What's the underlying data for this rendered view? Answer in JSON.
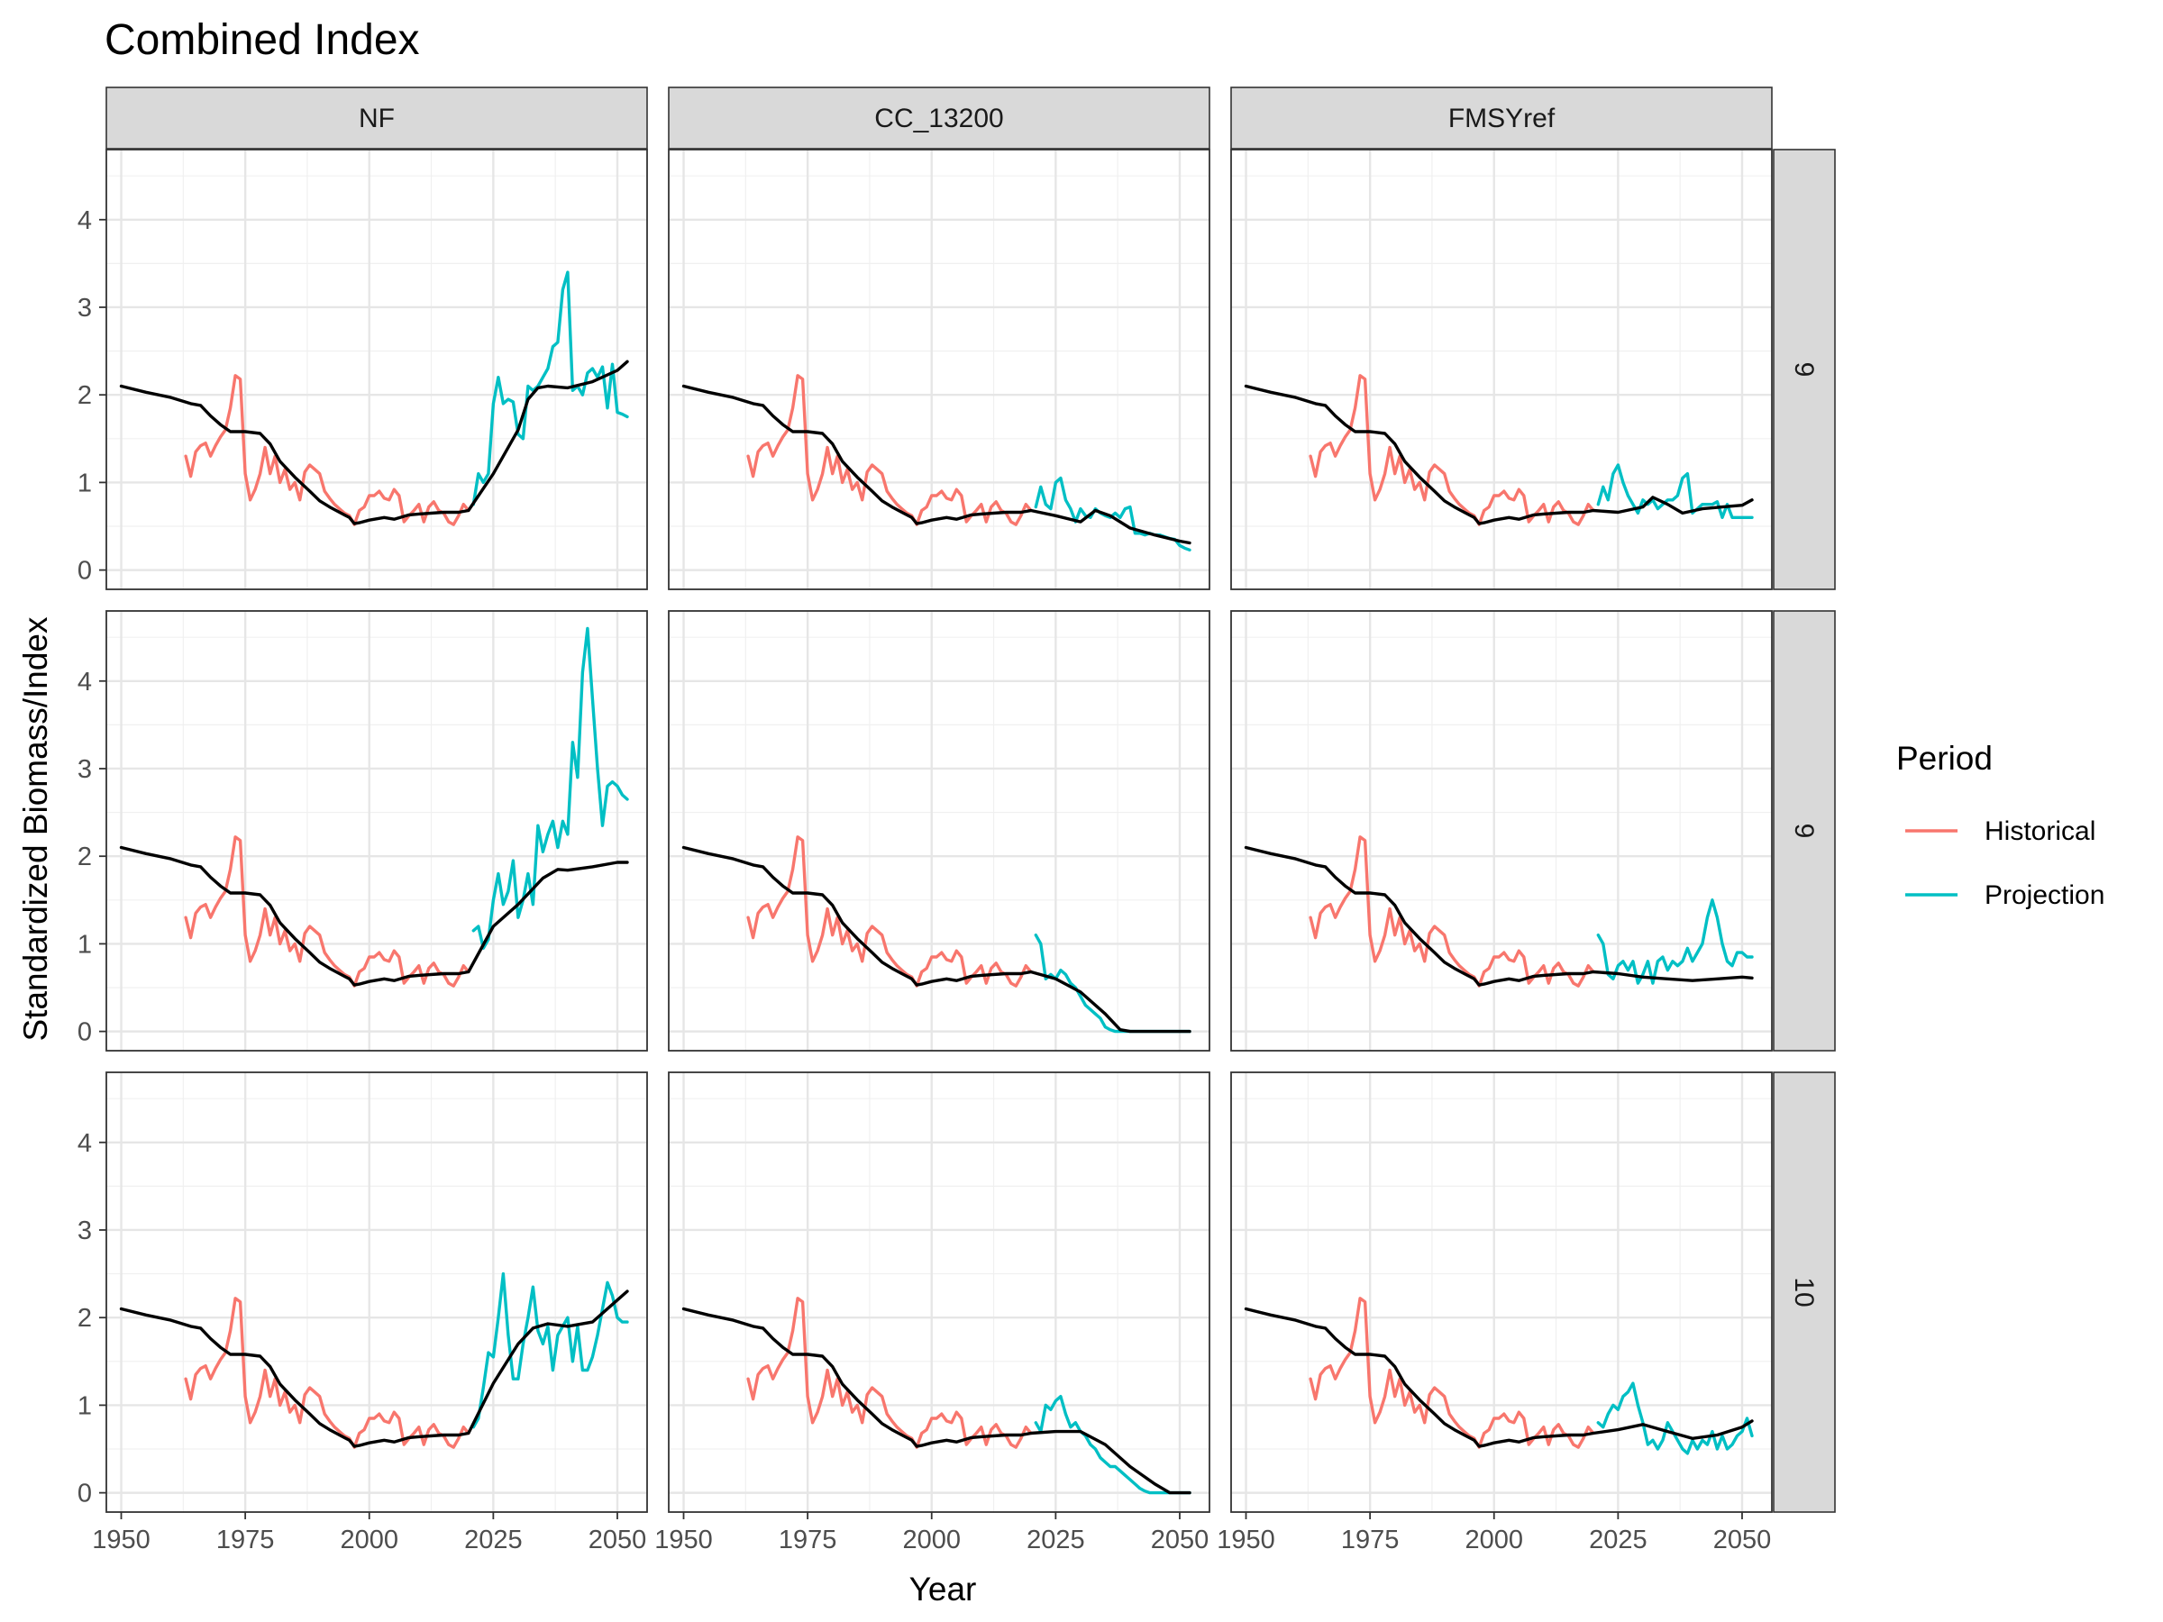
{
  "chart_data": {
    "type": "line",
    "title": "Combined Index",
    "xlabel": "Year",
    "ylabel": "Standardized Biomass/Index",
    "xlim": [
      1947,
      2056
    ],
    "ylim": [
      -0.22,
      4.8
    ],
    "x_ticks": [
      1950,
      1975,
      2000,
      2025,
      2050
    ],
    "y_ticks": [
      0,
      1,
      2,
      3,
      4
    ],
    "grid": true,
    "legend": {
      "title": "Period",
      "position": "right",
      "entries": [
        {
          "label": "Historical",
          "color": "#F8766D"
        },
        {
          "label": "Projection",
          "color": "#00BFC4"
        }
      ]
    },
    "col_labels": [
      "NF",
      "CC_13200",
      "FMSYref"
    ],
    "row_labels": [
      "9",
      "9",
      "10"
    ],
    "colors": {
      "Historical": "#F8766D",
      "Projection": "#00BFC4",
      "reference": "#000000"
    },
    "historical": {
      "x": [
        1963,
        1964,
        1965,
        1966,
        1967,
        1968,
        1969,
        1970,
        1971,
        1972,
        1973,
        1974,
        1975,
        1976,
        1977,
        1978,
        1979,
        1980,
        1981,
        1982,
        1983,
        1984,
        1985,
        1986,
        1987,
        1988,
        1989,
        1990,
        1991,
        1992,
        1993,
        1994,
        1995,
        1996,
        1997,
        1998,
        1999,
        2000,
        2001,
        2002,
        2003,
        2004,
        2005,
        2006,
        2007,
        2008,
        2009,
        2010,
        2011,
        2012,
        2013,
        2014,
        2015,
        2016,
        2017,
        2018,
        2019,
        2020
      ],
      "y": [
        1.3,
        1.07,
        1.35,
        1.42,
        1.45,
        1.3,
        1.42,
        1.52,
        1.6,
        1.85,
        2.22,
        2.18,
        1.1,
        0.8,
        0.92,
        1.1,
        1.4,
        1.1,
        1.3,
        1.0,
        1.15,
        0.92,
        1.0,
        0.8,
        1.12,
        1.2,
        1.15,
        1.1,
        0.9,
        0.82,
        0.75,
        0.7,
        0.65,
        0.62,
        0.52,
        0.68,
        0.72,
        0.85,
        0.85,
        0.9,
        0.82,
        0.8,
        0.92,
        0.85,
        0.55,
        0.62,
        0.68,
        0.75,
        0.55,
        0.72,
        0.78,
        0.68,
        0.65,
        0.55,
        0.52,
        0.62,
        0.75,
        0.68
      ]
    },
    "reference_hist": {
      "x": [
        1950,
        1955,
        1960,
        1964,
        1966,
        1968,
        1970,
        1972,
        1975,
        1978,
        1980,
        1982,
        1985,
        1988,
        1990,
        1992,
        1994,
        1996,
        1997,
        1998,
        2000,
        2003,
        2005,
        2008,
        2010,
        2015,
        2018,
        2020
      ],
      "y": [
        2.1,
        2.03,
        1.97,
        1.9,
        1.88,
        1.76,
        1.66,
        1.58,
        1.58,
        1.56,
        1.44,
        1.24,
        1.06,
        0.9,
        0.79,
        0.72,
        0.66,
        0.6,
        0.53,
        0.54,
        0.57,
        0.6,
        0.58,
        0.63,
        0.64,
        0.66,
        0.66,
        0.68
      ]
    },
    "panels": [
      {
        "col": "NF",
        "row": "9",
        "projection": {
          "x": [
            2021,
            2022,
            2023,
            2024,
            2025,
            2026,
            2027,
            2028,
            2029,
            2030,
            2031,
            2032,
            2033,
            2034,
            2035,
            2036,
            2037,
            2038,
            2039,
            2040,
            2041,
            2042,
            2043,
            2044,
            2045,
            2046,
            2047,
            2048,
            2049,
            2050,
            2051,
            2052
          ],
          "y": [
            0.75,
            1.1,
            1.0,
            1.1,
            1.9,
            2.2,
            1.9,
            1.95,
            1.92,
            1.55,
            1.5,
            2.1,
            2.05,
            2.1,
            2.2,
            2.3,
            2.55,
            2.6,
            3.2,
            3.4,
            2.05,
            2.1,
            2.0,
            2.25,
            2.3,
            2.2,
            2.32,
            1.85,
            2.35,
            1.8,
            1.78,
            1.75
          ]
        },
        "reference": {
          "x": [
            2020,
            2025,
            2030,
            2032,
            2034,
            2036,
            2040,
            2045,
            2050,
            2052
          ],
          "y": [
            0.7,
            1.1,
            1.6,
            1.95,
            2.08,
            2.1,
            2.08,
            2.15,
            2.28,
            2.38
          ]
        }
      },
      {
        "col": "CC_13200",
        "row": "9",
        "projection": {
          "x": [
            2021,
            2022,
            2023,
            2024,
            2025,
            2026,
            2027,
            2028,
            2029,
            2030,
            2031,
            2032,
            2033,
            2034,
            2035,
            2036,
            2037,
            2038,
            2039,
            2040,
            2041,
            2042,
            2043,
            2044,
            2045,
            2046,
            2047,
            2048,
            2049,
            2050,
            2051,
            2052
          ],
          "y": [
            0.72,
            0.95,
            0.75,
            0.7,
            1.0,
            1.05,
            0.8,
            0.7,
            0.55,
            0.7,
            0.62,
            0.6,
            0.7,
            0.65,
            0.62,
            0.6,
            0.65,
            0.6,
            0.7,
            0.72,
            0.42,
            0.42,
            0.4,
            0.42,
            0.4,
            0.4,
            0.38,
            0.36,
            0.35,
            0.28,
            0.25,
            0.23
          ]
        },
        "reference": {
          "x": [
            2020,
            2025,
            2030,
            2033,
            2036,
            2040,
            2045,
            2050,
            2052
          ],
          "y": [
            0.68,
            0.62,
            0.55,
            0.68,
            0.62,
            0.48,
            0.4,
            0.33,
            0.31
          ]
        }
      },
      {
        "col": "FMSYref",
        "row": "9",
        "projection": {
          "x": [
            2021,
            2022,
            2023,
            2024,
            2025,
            2026,
            2027,
            2028,
            2029,
            2030,
            2031,
            2032,
            2033,
            2034,
            2035,
            2036,
            2037,
            2038,
            2039,
            2040,
            2041,
            2042,
            2043,
            2044,
            2045,
            2046,
            2047,
            2048,
            2049,
            2050,
            2051,
            2052
          ],
          "y": [
            0.75,
            0.95,
            0.8,
            1.1,
            1.2,
            1.0,
            0.85,
            0.75,
            0.65,
            0.8,
            0.75,
            0.8,
            0.7,
            0.75,
            0.8,
            0.8,
            0.85,
            1.05,
            1.1,
            0.65,
            0.7,
            0.75,
            0.75,
            0.75,
            0.78,
            0.6,
            0.75,
            0.6,
            0.6,
            0.6,
            0.6,
            0.6
          ]
        },
        "reference": {
          "x": [
            2020,
            2025,
            2030,
            2032,
            2035,
            2038,
            2042,
            2046,
            2050,
            2052
          ],
          "y": [
            0.68,
            0.66,
            0.72,
            0.83,
            0.75,
            0.65,
            0.7,
            0.72,
            0.74,
            0.8
          ]
        }
      },
      {
        "col": "NF",
        "row": "9",
        "projection": {
          "x": [
            2021,
            2022,
            2023,
            2024,
            2025,
            2026,
            2027,
            2028,
            2029,
            2030,
            2031,
            2032,
            2033,
            2034,
            2035,
            2036,
            2037,
            2038,
            2039,
            2040,
            2041,
            2042,
            2043,
            2044,
            2045,
            2046,
            2047,
            2048,
            2049,
            2050,
            2051,
            2052
          ],
          "y": [
            1.15,
            1.2,
            0.95,
            1.05,
            1.5,
            1.8,
            1.45,
            1.6,
            1.95,
            1.3,
            1.5,
            1.8,
            1.45,
            2.35,
            2.05,
            2.25,
            2.4,
            2.1,
            2.4,
            2.25,
            3.3,
            2.9,
            4.1,
            4.6,
            3.8,
            3.0,
            2.35,
            2.8,
            2.85,
            2.8,
            2.7,
            2.65
          ]
        },
        "reference": {
          "x": [
            2020,
            2025,
            2030,
            2035,
            2038,
            2040,
            2045,
            2050,
            2052
          ],
          "y": [
            0.7,
            1.2,
            1.45,
            1.75,
            1.85,
            1.84,
            1.88,
            1.93,
            1.93
          ]
        }
      },
      {
        "col": "CC_13200",
        "row": "9",
        "projection": {
          "x": [
            2021,
            2022,
            2023,
            2024,
            2025,
            2026,
            2027,
            2028,
            2029,
            2030,
            2031,
            2032,
            2033,
            2034,
            2035,
            2036,
            2037,
            2038,
            2039,
            2040,
            2041,
            2042,
            2043,
            2044,
            2045,
            2046,
            2047,
            2048,
            2049,
            2050,
            2051,
            2052
          ],
          "y": [
            1.1,
            1.0,
            0.6,
            0.65,
            0.6,
            0.7,
            0.65,
            0.55,
            0.5,
            0.4,
            0.3,
            0.25,
            0.2,
            0.15,
            0.05,
            0.02,
            0,
            0,
            0,
            0,
            0,
            0,
            0,
            0,
            0,
            0,
            0,
            0,
            0,
            0,
            0,
            0
          ]
        },
        "reference": {
          "x": [
            2020,
            2025,
            2030,
            2035,
            2038,
            2040,
            2045,
            2050,
            2052
          ],
          "y": [
            0.68,
            0.6,
            0.45,
            0.2,
            0.02,
            0,
            0,
            0,
            0
          ]
        }
      },
      {
        "col": "FMSYref",
        "row": "9",
        "projection": {
          "x": [
            2021,
            2022,
            2023,
            2024,
            2025,
            2026,
            2027,
            2028,
            2029,
            2030,
            2031,
            2032,
            2033,
            2034,
            2035,
            2036,
            2037,
            2038,
            2039,
            2040,
            2041,
            2042,
            2043,
            2044,
            2045,
            2046,
            2047,
            2048,
            2049,
            2050,
            2051,
            2052
          ],
          "y": [
            1.1,
            1.0,
            0.65,
            0.6,
            0.75,
            0.8,
            0.7,
            0.8,
            0.55,
            0.65,
            0.8,
            0.55,
            0.8,
            0.85,
            0.7,
            0.8,
            0.75,
            0.8,
            0.95,
            0.8,
            0.9,
            1.0,
            1.3,
            1.5,
            1.3,
            1.0,
            0.8,
            0.75,
            0.9,
            0.9,
            0.85,
            0.85
          ]
        },
        "reference": {
          "x": [
            2020,
            2025,
            2030,
            2035,
            2040,
            2045,
            2050,
            2052
          ],
          "y": [
            0.68,
            0.66,
            0.62,
            0.6,
            0.58,
            0.6,
            0.62,
            0.61
          ]
        }
      },
      {
        "col": "NF",
        "row": "10",
        "projection": {
          "x": [
            2021,
            2022,
            2023,
            2024,
            2025,
            2026,
            2027,
            2028,
            2029,
            2030,
            2031,
            2032,
            2033,
            2034,
            2035,
            2036,
            2037,
            2038,
            2039,
            2040,
            2041,
            2042,
            2043,
            2044,
            2045,
            2046,
            2047,
            2048,
            2049,
            2050,
            2051,
            2052
          ],
          "y": [
            0.75,
            0.85,
            1.2,
            1.6,
            1.55,
            2.0,
            2.5,
            1.8,
            1.3,
            1.3,
            1.7,
            2.0,
            2.35,
            1.85,
            1.7,
            1.9,
            1.4,
            1.8,
            1.9,
            2.0,
            1.5,
            1.9,
            1.4,
            1.4,
            1.55,
            1.8,
            2.1,
            2.4,
            2.25,
            2.0,
            1.95,
            1.95
          ]
        },
        "reference": {
          "x": [
            2020,
            2025,
            2030,
            2033,
            2036,
            2040,
            2045,
            2050,
            2052
          ],
          "y": [
            0.7,
            1.25,
            1.7,
            1.88,
            1.93,
            1.9,
            1.95,
            2.2,
            2.3
          ]
        }
      },
      {
        "col": "CC_13200",
        "row": "10",
        "projection": {
          "x": [
            2021,
            2022,
            2023,
            2024,
            2025,
            2026,
            2027,
            2028,
            2029,
            2030,
            2031,
            2032,
            2033,
            2034,
            2035,
            2036,
            2037,
            2038,
            2039,
            2040,
            2041,
            2042,
            2043,
            2044,
            2045,
            2046,
            2047,
            2048,
            2049,
            2050,
            2051,
            2052
          ],
          "y": [
            0.8,
            0.7,
            1.0,
            0.95,
            1.05,
            1.1,
            0.9,
            0.75,
            0.8,
            0.7,
            0.65,
            0.55,
            0.5,
            0.4,
            0.35,
            0.3,
            0.3,
            0.25,
            0.2,
            0.15,
            0.1,
            0.05,
            0.02,
            0,
            0,
            0,
            0,
            0,
            0,
            0,
            0,
            0
          ]
        },
        "reference": {
          "x": [
            2020,
            2025,
            2030,
            2035,
            2040,
            2045,
            2048,
            2050,
            2052
          ],
          "y": [
            0.68,
            0.7,
            0.7,
            0.55,
            0.3,
            0.1,
            0,
            0,
            0
          ]
        }
      },
      {
        "col": "FMSYref",
        "row": "10",
        "projection": {
          "x": [
            2021,
            2022,
            2023,
            2024,
            2025,
            2026,
            2027,
            2028,
            2029,
            2030,
            2031,
            2032,
            2033,
            2034,
            2035,
            2036,
            2037,
            2038,
            2039,
            2040,
            2041,
            2042,
            2043,
            2044,
            2045,
            2046,
            2047,
            2048,
            2049,
            2050,
            2051,
            2052
          ],
          "y": [
            0.8,
            0.75,
            0.9,
            1.0,
            0.95,
            1.1,
            1.15,
            1.25,
            1.0,
            0.8,
            0.55,
            0.6,
            0.5,
            0.6,
            0.8,
            0.7,
            0.6,
            0.5,
            0.45,
            0.6,
            0.5,
            0.6,
            0.55,
            0.7,
            0.5,
            0.65,
            0.5,
            0.55,
            0.65,
            0.7,
            0.85,
            0.65
          ]
        },
        "reference": {
          "x": [
            2020,
            2025,
            2030,
            2035,
            2040,
            2045,
            2050,
            2052
          ],
          "y": [
            0.7,
            0.72,
            0.78,
            0.7,
            0.62,
            0.66,
            0.75,
            0.82
          ]
        }
      }
    ]
  }
}
